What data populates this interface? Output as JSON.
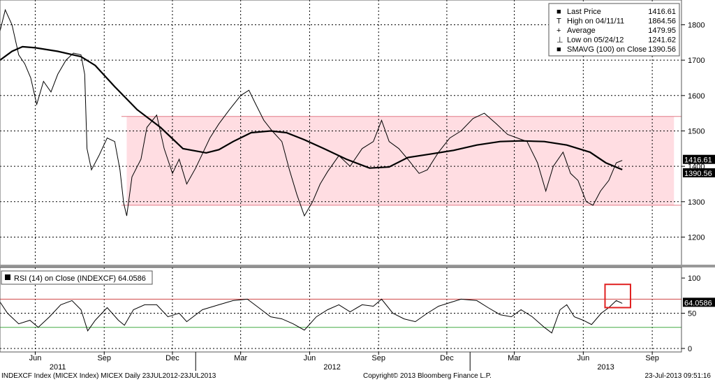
{
  "chart_data": [
    {
      "type": "line",
      "title": "",
      "x_range": [
        "2011-04-15",
        "2013-10-10"
      ],
      "ylim": [
        1120,
        1870
      ],
      "y_ticks": [
        "1800",
        "1700",
        "1600",
        "1500",
        "1400",
        "1300",
        "1200"
      ],
      "band": {
        "low": 1290,
        "high": 1541,
        "color": "#ffdde2",
        "edge_color": "#e27a85"
      },
      "series": [
        {
          "key": "price",
          "color": "#000000",
          "points": [
            [
              "2011-04-15",
              1782
            ],
            [
              "2011-04-22",
              1842
            ],
            [
              "2011-05-01",
              1800
            ],
            [
              "2011-05-10",
              1715
            ],
            [
              "2011-05-18",
              1690
            ],
            [
              "2011-05-26",
              1650
            ],
            [
              "2011-06-03",
              1575
            ],
            [
              "2011-06-12",
              1640
            ],
            [
              "2011-06-22",
              1610
            ],
            [
              "2011-07-01",
              1660
            ],
            [
              "2011-07-12",
              1700
            ],
            [
              "2011-07-22",
              1720
            ],
            [
              "2011-08-01",
              1715
            ],
            [
              "2011-08-06",
              1660
            ],
            [
              "2011-08-09",
              1450
            ],
            [
              "2011-08-15",
              1390
            ],
            [
              "2011-08-25",
              1430
            ],
            [
              "2011-09-05",
              1480
            ],
            [
              "2011-09-15",
              1470
            ],
            [
              "2011-09-22",
              1390
            ],
            [
              "2011-09-27",
              1295
            ],
            [
              "2011-10-01",
              1260
            ],
            [
              "2011-10-08",
              1370
            ],
            [
              "2011-10-20",
              1420
            ],
            [
              "2011-10-28",
              1510
            ],
            [
              "2011-11-10",
              1545
            ],
            [
              "2011-11-20",
              1450
            ],
            [
              "2011-12-01",
              1380
            ],
            [
              "2011-12-10",
              1420
            ],
            [
              "2011-12-20",
              1350
            ],
            [
              "2012-01-01",
              1395
            ],
            [
              "2012-01-20",
              1480
            ],
            [
              "2012-02-01",
              1520
            ],
            [
              "2012-02-15",
              1560
            ],
            [
              "2012-03-01",
              1600
            ],
            [
              "2012-03-12",
              1615
            ],
            [
              "2012-03-20",
              1580
            ],
            [
              "2012-04-01",
              1530
            ],
            [
              "2012-04-12",
              1500
            ],
            [
              "2012-04-25",
              1470
            ],
            [
              "2012-05-05",
              1390
            ],
            [
              "2012-05-15",
              1320
            ],
            [
              "2012-05-25",
              1260
            ],
            [
              "2012-06-05",
              1300
            ],
            [
              "2012-06-15",
              1350
            ],
            [
              "2012-06-25",
              1385
            ],
            [
              "2012-07-10",
              1430
            ],
            [
              "2012-07-25",
              1400
            ],
            [
              "2012-08-10",
              1450
            ],
            [
              "2012-08-25",
              1470
            ],
            [
              "2012-09-05",
              1530
            ],
            [
              "2012-09-15",
              1470
            ],
            [
              "2012-09-28",
              1450
            ],
            [
              "2012-10-10",
              1420
            ],
            [
              "2012-10-25",
              1380
            ],
            [
              "2012-11-05",
              1390
            ],
            [
              "2012-11-20",
              1440
            ],
            [
              "2012-12-05",
              1480
            ],
            [
              "2012-12-20",
              1500
            ],
            [
              "2013-01-05",
              1535
            ],
            [
              "2013-01-20",
              1550
            ],
            [
              "2013-02-05",
              1520
            ],
            [
              "2013-02-20",
              1490
            ],
            [
              "2013-03-05",
              1480
            ],
            [
              "2013-03-18",
              1470
            ],
            [
              "2013-04-01",
              1410
            ],
            [
              "2013-04-12",
              1330
            ],
            [
              "2013-04-22",
              1400
            ],
            [
              "2013-05-05",
              1440
            ],
            [
              "2013-05-15",
              1380
            ],
            [
              "2013-05-25",
              1360
            ],
            [
              "2013-06-05",
              1300
            ],
            [
              "2013-06-14",
              1290
            ],
            [
              "2013-06-24",
              1330
            ],
            [
              "2013-07-05",
              1360
            ],
            [
              "2013-07-15",
              1410
            ],
            [
              "2013-07-23",
              1416.61
            ]
          ]
        },
        {
          "key": "sma",
          "color": "#000000",
          "points": [
            [
              "2011-04-15",
              1700
            ],
            [
              "2011-05-01",
              1725
            ],
            [
              "2011-05-15",
              1738
            ],
            [
              "2011-06-01",
              1735
            ],
            [
              "2011-07-01",
              1725
            ],
            [
              "2011-08-01",
              1710
            ],
            [
              "2011-08-20",
              1685
            ],
            [
              "2011-09-15",
              1625
            ],
            [
              "2011-10-15",
              1560
            ],
            [
              "2011-11-15",
              1510
            ],
            [
              "2011-12-15",
              1450
            ],
            [
              "2012-01-15",
              1438
            ],
            [
              "2012-02-01",
              1447
            ],
            [
              "2012-02-20",
              1470
            ],
            [
              "2012-03-15",
              1495
            ],
            [
              "2012-04-10",
              1500
            ],
            [
              "2012-05-01",
              1495
            ],
            [
              "2012-05-25",
              1475
            ],
            [
              "2012-06-20",
              1450
            ],
            [
              "2012-07-20",
              1420
            ],
            [
              "2012-08-20",
              1395
            ],
            [
              "2012-09-15",
              1398
            ],
            [
              "2012-10-10",
              1425
            ],
            [
              "2012-11-10",
              1435
            ],
            [
              "2012-12-10",
              1445
            ],
            [
              "2013-01-10",
              1460
            ],
            [
              "2013-02-10",
              1470
            ],
            [
              "2013-03-10",
              1472
            ],
            [
              "2013-04-10",
              1470
            ],
            [
              "2013-05-10",
              1460
            ],
            [
              "2013-06-10",
              1440
            ],
            [
              "2013-07-01",
              1410
            ],
            [
              "2013-07-23",
              1390.56
            ]
          ]
        }
      ],
      "price_labels": {
        "last": "1416.61",
        "sma": "1390.56",
        "last_value": 1416.61,
        "sma_value": 1390.56
      },
      "legend": {
        "position": "top-right",
        "items": [
          {
            "symbol": "■",
            "label": "Last Price",
            "value": "1416.61"
          },
          {
            "symbol": "T",
            "label": "High on 04/11/11",
            "value": "1864.56"
          },
          {
            "symbol": "+",
            "label": "Average",
            "value": "1479.95"
          },
          {
            "symbol": "⊥",
            "label": "Low on 05/24/12",
            "value": "1241.62"
          },
          {
            "symbol": "■",
            "label": "SMAVG (100) on Close",
            "value": "1390.56"
          }
        ]
      }
    },
    {
      "type": "line",
      "title": "",
      "ylim": [
        -5,
        115
      ],
      "y_ticks": [
        "100",
        "50",
        "0"
      ],
      "levels": {
        "upper": 70,
        "lower": 30,
        "upper_color": "#d04444",
        "lower_color": "#44aa44"
      },
      "legend_text": "RSI (14) on Close (INDEXCF) 64.0586",
      "last_label": "64.0586",
      "last_value": 64.0586,
      "series": [
        {
          "key": "rsi",
          "color": "#000000",
          "points": [
            [
              "2011-04-15",
              66
            ],
            [
              "2011-04-25",
              50
            ],
            [
              "2011-05-10",
              35
            ],
            [
              "2011-05-25",
              40
            ],
            [
              "2011-06-05",
              30
            ],
            [
              "2011-06-20",
              45
            ],
            [
              "2011-07-05",
              62
            ],
            [
              "2011-07-20",
              68
            ],
            [
              "2011-08-01",
              55
            ],
            [
              "2011-08-10",
              25
            ],
            [
              "2011-08-20",
              40
            ],
            [
              "2011-09-05",
              58
            ],
            [
              "2011-09-20",
              40
            ],
            [
              "2011-09-28",
              33
            ],
            [
              "2011-10-10",
              55
            ],
            [
              "2011-10-25",
              62
            ],
            [
              "2011-11-10",
              62
            ],
            [
              "2011-11-25",
              45
            ],
            [
              "2011-12-10",
              50
            ],
            [
              "2011-12-20",
              38
            ],
            [
              "2012-01-10",
              55
            ],
            [
              "2012-02-01",
              62
            ],
            [
              "2012-02-20",
              68
            ],
            [
              "2012-03-10",
              70
            ],
            [
              "2012-03-25",
              58
            ],
            [
              "2012-04-10",
              45
            ],
            [
              "2012-04-25",
              42
            ],
            [
              "2012-05-10",
              35
            ],
            [
              "2012-05-25",
              26
            ],
            [
              "2012-06-10",
              45
            ],
            [
              "2012-06-25",
              55
            ],
            [
              "2012-07-10",
              62
            ],
            [
              "2012-07-25",
              52
            ],
            [
              "2012-08-10",
              62
            ],
            [
              "2012-08-25",
              60
            ],
            [
              "2012-09-05",
              70
            ],
            [
              "2012-09-20",
              50
            ],
            [
              "2012-10-05",
              42
            ],
            [
              "2012-10-20",
              38
            ],
            [
              "2012-11-05",
              50
            ],
            [
              "2012-11-20",
              60
            ],
            [
              "2012-12-05",
              65
            ],
            [
              "2012-12-20",
              70
            ],
            [
              "2013-01-10",
              68
            ],
            [
              "2013-01-25",
              58
            ],
            [
              "2013-02-10",
              48
            ],
            [
              "2013-02-25",
              45
            ],
            [
              "2013-03-10",
              55
            ],
            [
              "2013-03-25",
              45
            ],
            [
              "2013-04-10",
              30
            ],
            [
              "2013-04-20",
              22
            ],
            [
              "2013-05-01",
              55
            ],
            [
              "2013-05-10",
              62
            ],
            [
              "2013-05-20",
              45
            ],
            [
              "2013-06-01",
              40
            ],
            [
              "2013-06-12",
              34
            ],
            [
              "2013-06-25",
              50
            ],
            [
              "2013-07-05",
              58
            ],
            [
              "2013-07-15",
              68
            ],
            [
              "2013-07-23",
              64.06
            ]
          ]
        }
      ],
      "highlight_box": {
        "from": "2013-06-30",
        "to": "2013-08-03",
        "low": 58,
        "high": 91,
        "color": "#e02020"
      }
    }
  ],
  "x_axis": {
    "grid_dates": [
      "2011-06-01",
      "2011-09-01",
      "2011-12-01",
      "2012-03-01",
      "2012-06-01",
      "2012-09-01",
      "2012-12-01",
      "2013-03-01",
      "2013-06-01",
      "2013-09-01"
    ],
    "month_labels": [
      {
        "date": "2011-06-01",
        "text": "Jun"
      },
      {
        "date": "2011-09-01",
        "text": "Sep"
      },
      {
        "date": "2011-12-01",
        "text": "Dec"
      },
      {
        "date": "2012-03-01",
        "text": "Mar"
      },
      {
        "date": "2012-06-01",
        "text": "Jun"
      },
      {
        "date": "2012-09-01",
        "text": "Sep"
      },
      {
        "date": "2012-12-01",
        "text": "Dec"
      },
      {
        "date": "2013-03-01",
        "text": "Mar"
      },
      {
        "date": "2013-06-01",
        "text": "Jun"
      },
      {
        "date": "2013-09-01",
        "text": "Sep"
      }
    ],
    "year_labels": [
      {
        "date": "2011-07-01",
        "text": "2011"
      },
      {
        "date": "2012-07-01",
        "text": "2012"
      },
      {
        "date": "2013-07-01",
        "text": "2013"
      }
    ],
    "year_dividers": [
      "2012-01-01",
      "2013-01-01"
    ]
  },
  "footer": {
    "left": "INDEXCF Index (MICEX Index) MICEX  Daily 23JUL2012-23JUL2013",
    "center": "Copyright© 2013 Bloomberg Finance L.P.",
    "right": "23-Jul-2013 09:51:16"
  }
}
